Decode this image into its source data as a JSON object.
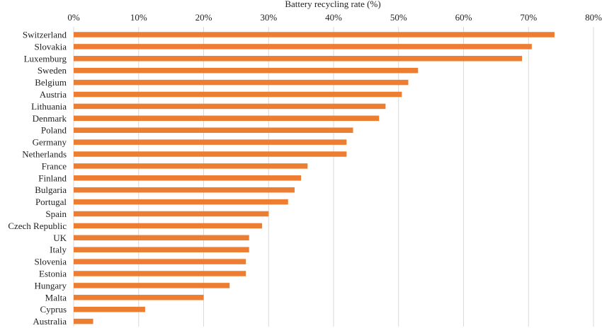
{
  "chart_data": {
    "type": "bar",
    "orientation": "horizontal",
    "xlabel": "Battery recycling rate (%)",
    "x_axis_position": "top",
    "xlim": [
      0,
      80
    ],
    "xticks": [
      "0%",
      "10%",
      "20%",
      "30%",
      "40%",
      "50%",
      "60%",
      "70%",
      "80%"
    ],
    "grid": true,
    "legend": "none",
    "bar_color": "#ED7D31",
    "categories": [
      "Switzerland",
      "Slovakia",
      "Luxemburg",
      "Sweden",
      "Belgium",
      "Austria",
      "Lithuania",
      "Denmark",
      "Poland",
      "Germany",
      "Netherlands",
      "France",
      "Finland",
      "Bulgaria",
      "Portugal",
      "Spain",
      "Czech Republic",
      "UK",
      "Italy",
      "Slovenia",
      "Estonia",
      "Hungary",
      "Malta",
      "Cyprus",
      "Australia"
    ],
    "values": [
      74,
      70.5,
      69,
      53,
      51.5,
      50.5,
      48,
      47,
      43,
      42,
      42,
      36,
      35,
      34,
      33,
      30,
      29,
      27,
      27,
      26.5,
      26.5,
      24,
      20,
      11,
      3
    ]
  }
}
